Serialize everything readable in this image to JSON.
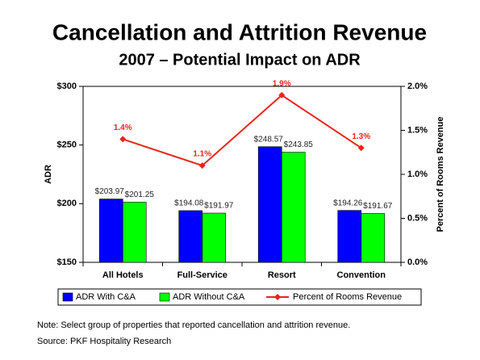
{
  "chart_data": {
    "type": "bar",
    "title": "Cancellation and Attrition Revenue",
    "subtitle": "2007 – Potential Impact on ADR",
    "y_label": "ADR",
    "y2_label": "Percent of Rooms Revenue",
    "categories": [
      "All Hotels",
      "Full-Service",
      "Resort",
      "Convention"
    ],
    "series": [
      {
        "name": "ADR With C&A",
        "type": "bar",
        "color": "#0000ff",
        "values": [
          203.97,
          194.08,
          248.57,
          194.26
        ],
        "value_labels": [
          "$203.97",
          "$194.08",
          "$248.57",
          "$194.26"
        ]
      },
      {
        "name": "ADR Without C&A",
        "type": "bar",
        "color": "#00ff00",
        "values": [
          201.25,
          191.97,
          243.85,
          191.67
        ],
        "value_labels": [
          "$201.25",
          "$191.97",
          "$243.85",
          "$191.67"
        ]
      },
      {
        "name": "Percent of Rooms Revenue",
        "type": "line",
        "axis": "y2",
        "color": "#e8251c",
        "values": [
          1.4,
          1.1,
          1.9,
          1.3
        ],
        "value_labels": [
          "1.4%",
          "1.1%",
          "1.9%",
          "1.3%"
        ]
      }
    ],
    "ylim": [
      150,
      300
    ],
    "yticks": [
      {
        "value": 150,
        "label": "$150"
      },
      {
        "value": 200,
        "label": "$200"
      },
      {
        "value": 250,
        "label": "$250"
      },
      {
        "value": 300,
        "label": "$300"
      }
    ],
    "y2lim": [
      0,
      2.0
    ],
    "y2ticks": [
      {
        "value": 0,
        "label": "0.0%"
      },
      {
        "value": 0.5,
        "label": "0.5%"
      },
      {
        "value": 1.0,
        "label": "1.0%"
      },
      {
        "value": 1.5,
        "label": "1.5%"
      },
      {
        "value": 2.0,
        "label": "2.0%"
      }
    ],
    "grid": false,
    "legend": "bottom",
    "note": "Note: Select group of properties that reported cancellation and attrition revenue.",
    "source": "Source: PKF Hospitality Research"
  }
}
